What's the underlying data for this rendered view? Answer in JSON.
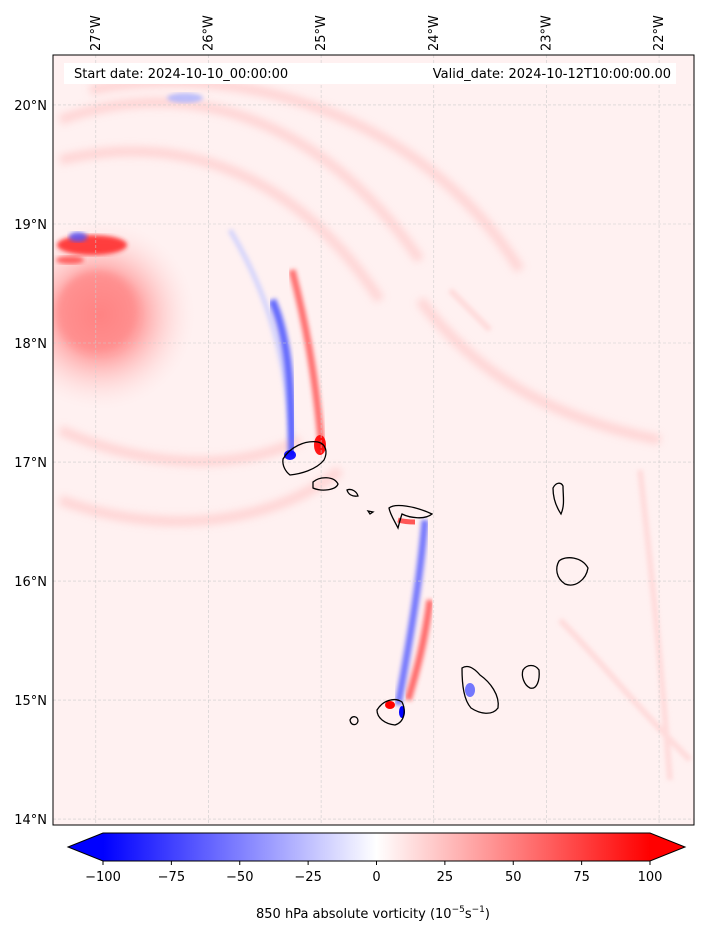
{
  "map": {
    "start_label": "Start date: 2024-10-10_00:00:00",
    "valid_label": "Valid_date: 2024-10-12T10:00:00.00",
    "lon_labels": [
      "27°W",
      "26°W",
      "25°W",
      "24°W",
      "23°W",
      "22°W"
    ],
    "lat_labels": [
      "20°N",
      "19°N",
      "18°N",
      "17°N",
      "16°N",
      "15°N",
      "14°N"
    ],
    "lon_values": [
      -27,
      -26,
      -25,
      -24,
      -23,
      -22
    ],
    "lat_values": [
      20,
      19,
      18,
      17,
      16,
      15,
      14
    ],
    "extent": {
      "lon_min": -27.38,
      "lon_max": -21.69,
      "lat_min": 13.95,
      "lat_max": 20.42
    },
    "grid": true
  },
  "colorbar": {
    "label": "850 hPa absolute vorticity (10",
    "label_exp1": "−5",
    "label_mid": "s",
    "label_exp2": "−1",
    "label_end": ")",
    "tick_labels": [
      "−100",
      "−75",
      "−50",
      "−25",
      "0",
      "25",
      "50",
      "75",
      "100"
    ],
    "tick_values": [
      -100,
      -75,
      -50,
      -25,
      0,
      25,
      50,
      75,
      100
    ],
    "range": [
      -100,
      100
    ],
    "extend": "both",
    "colormap": "bwr",
    "colors": {
      "negative": "#0000ff",
      "zero": "#ffffff",
      "positive": "#ff0000"
    }
  }
}
